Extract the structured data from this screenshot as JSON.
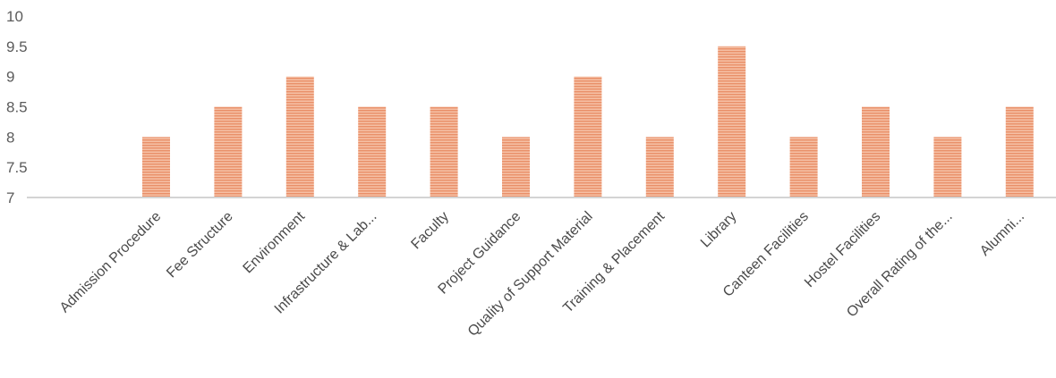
{
  "chart_data": {
    "type": "bar",
    "categories": [
      "Admission Procedure",
      "Fee Structure",
      "Environment",
      "Infrastructure & Lab...",
      "Faculty",
      "Project Guidance",
      "Quality of Support Material",
      "Training & Placement",
      "Library",
      "Canteen Facilities",
      "Hostel Facilities",
      "Overall Rating of the...",
      "Alumni..."
    ],
    "values": [
      8,
      8.5,
      9,
      8.5,
      8.5,
      8,
      9,
      8,
      9.5,
      8,
      8.5,
      8,
      8.5
    ],
    "yticks": [
      "7",
      "7.5",
      "8",
      "8.5",
      "9",
      "9.5",
      "10"
    ],
    "ylim": [
      7,
      10
    ],
    "grid": false,
    "bar_color": "#f0a886",
    "axis_color": "#d4d4d4"
  }
}
